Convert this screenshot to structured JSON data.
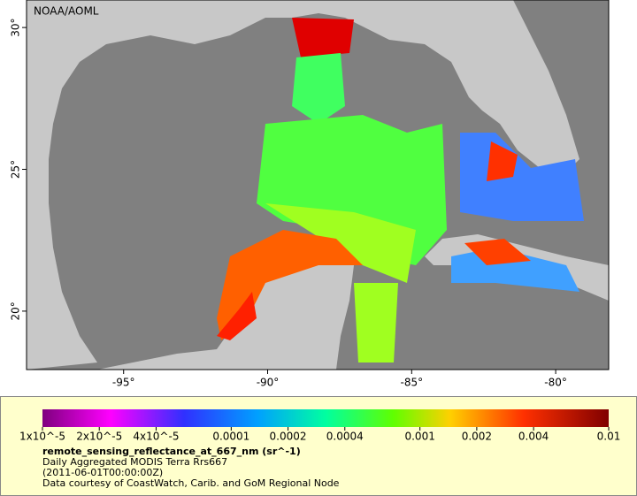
{
  "map": {
    "attribution": "NOAA/AOML",
    "xlim": [
      -98.37,
      -78.16
    ],
    "ylim": [
      17.94,
      30.97
    ],
    "xticks": [
      {
        "value": -95,
        "label": "-95°"
      },
      {
        "value": -90,
        "label": "-90°"
      },
      {
        "value": -85,
        "label": "-85°"
      },
      {
        "value": -80,
        "label": "-80°"
      }
    ],
    "yticks": [
      {
        "value": 20,
        "label": "20°"
      },
      {
        "value": 25,
        "label": "25°"
      },
      {
        "value": 30,
        "label": "30°"
      }
    ]
  },
  "legend": {
    "colorbar": {
      "lim": [
        1e-05,
        0.01
      ],
      "log": true,
      "ticks": [
        {
          "value": 1e-05,
          "label": "1x10^-5"
        },
        {
          "value": 2e-05,
          "label": "2x10^-5"
        },
        {
          "value": 4e-05,
          "label": "4x10^-5"
        },
        0.0001,
        0.0002,
        0.0004,
        0.001,
        0.002,
        0.004,
        0.01
      ]
    },
    "variable": "remote_sensing_reflectance_at_667_nm (sr^-1)",
    "product": "Daily Aggregated MODIS Terra Rrs667",
    "time": "(2011-06-01T00:00:00Z)",
    "credit": "Data courtesy of CoastWatch, Carib. and GoM Regional Node"
  }
}
